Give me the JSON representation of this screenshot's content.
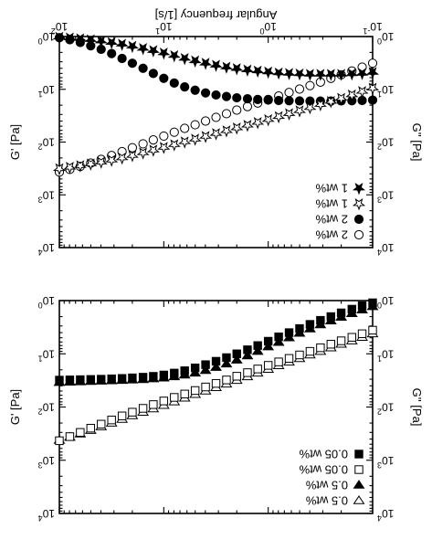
{
  "chart_data": [
    {
      "type": "scatter",
      "panel": "top",
      "xlabel": "Angular frequency [1/s]",
      "ylabel_left": "G'' [Pa]",
      "ylabel_right": "G' [Pa]",
      "x_scale": "log",
      "y_scale": "log",
      "xlim": [
        0.1,
        100
      ],
      "ylim": [
        1,
        10000
      ],
      "x_ticks": [
        {
          "v": 0.1,
          "base": "10",
          "exp": "-1"
        },
        {
          "v": 1,
          "base": "10",
          "exp": "0"
        },
        {
          "v": 10,
          "base": "10",
          "exp": "1"
        },
        {
          "v": 100,
          "base": "10",
          "exp": "2"
        }
      ],
      "y_ticks": [
        {
          "v": 1,
          "base": "10",
          "exp": "0"
        },
        {
          "v": 10,
          "base": "10",
          "exp": "1"
        },
        {
          "v": 100,
          "base": "10",
          "exp": "2"
        },
        {
          "v": 1000,
          "base": "10",
          "exp": "3"
        },
        {
          "v": 10000,
          "base": "10",
          "exp": "4"
        }
      ],
      "legend_position": "top-left (as printed, figure rotated 180°)",
      "series": [
        {
          "name": "2 wt%",
          "marker": "circle",
          "fill": "open",
          "x": [
            0.1,
            0.126,
            0.158,
            0.2,
            0.251,
            0.316,
            0.398,
            0.501,
            0.631,
            0.794,
            1,
            1.26,
            1.58,
            2,
            2.51,
            3.16,
            3.98,
            5.01,
            6.31,
            7.94,
            10,
            12.6,
            15.8,
            20,
            25.1,
            31.6,
            39.8,
            50.1,
            63.1,
            79.4,
            100
          ],
          "y": [
            3.2,
            3.8,
            4.5,
            5.3,
            6.2,
            7.3,
            8.5,
            9.9,
            11.5,
            13.4,
            15.6,
            18.2,
            21.2,
            24.8,
            29,
            34,
            40,
            47,
            55,
            65,
            77,
            91,
            108,
            128,
            152,
            180,
            213,
            250,
            290,
            330,
            370
          ]
        },
        {
          "name": "2 wt%",
          "marker": "circle",
          "fill": "filled",
          "x": [
            0.1,
            0.126,
            0.158,
            0.2,
            0.251,
            0.316,
            0.398,
            0.501,
            0.631,
            0.794,
            1,
            1.26,
            1.58,
            2,
            2.51,
            3.16,
            3.98,
            5.01,
            6.31,
            7.94,
            10,
            12.6,
            15.8,
            20,
            25.1,
            31.6,
            39.8,
            50.1,
            63.1,
            79.4,
            100
          ],
          "y": [
            16,
            16.3,
            16.5,
            16.6,
            16.7,
            16.7,
            16.7,
            16.6,
            16.5,
            16.3,
            16,
            15.6,
            15.1,
            14.5,
            13.7,
            12.8,
            11.7,
            10.4,
            9,
            7.6,
            6.2,
            5,
            4,
            3.2,
            2.6,
            2.1,
            1.75,
            1.5,
            1.3,
            1.15,
            1.05
          ]
        },
        {
          "name": "1 wt%",
          "marker": "star",
          "fill": "open",
          "x": [
            0.1,
            0.126,
            0.158,
            0.2,
            0.251,
            0.316,
            0.398,
            0.501,
            0.631,
            0.794,
            1,
            1.26,
            1.58,
            2,
            2.51,
            3.16,
            3.98,
            5.01,
            6.31,
            7.94,
            10,
            12.6,
            15.8,
            20,
            25.1,
            31.6,
            39.8,
            50.1,
            63.1,
            79.4,
            100
          ],
          "y": [
            9.5,
            11,
            12.8,
            14.8,
            17,
            19.5,
            22.3,
            25.5,
            29,
            33,
            37.5,
            42.5,
            48,
            54,
            61,
            69,
            78,
            88,
            99,
            112,
            126,
            142,
            160,
            180,
            200,
            220,
            240,
            260,
            280,
            300,
            320
          ]
        },
        {
          "name": "1 wt%",
          "marker": "star",
          "fill": "filled",
          "x": [
            0.1,
            0.126,
            0.158,
            0.2,
            0.251,
            0.316,
            0.398,
            0.501,
            0.631,
            0.794,
            1,
            1.26,
            1.58,
            2,
            2.51,
            3.16,
            3.98,
            5.01,
            6.31,
            7.94,
            10,
            12.6,
            15.8,
            20,
            25.1,
            31.6,
            39.8,
            50.1,
            63.1,
            79.4,
            100
          ],
          "y": [
            4.8,
            5,
            5.1,
            5.2,
            5.2,
            5.2,
            5.2,
            5.1,
            5,
            4.9,
            4.7,
            4.5,
            4.3,
            4.05,
            3.8,
            3.5,
            3.2,
            2.9,
            2.6,
            2.3,
            2.05,
            1.85,
            1.68,
            1.53,
            1.4,
            1.3,
            1.22,
            1.15,
            1.1,
            1.06,
            1.03
          ]
        }
      ]
    },
    {
      "type": "scatter",
      "panel": "bottom",
      "xlabel": "",
      "ylabel_left": "G'' [Pa]",
      "ylabel_right": "G' [Pa]",
      "x_scale": "log",
      "y_scale": "log",
      "xlim": [
        0.1,
        100
      ],
      "ylim": [
        1,
        10000
      ],
      "y_ticks": [
        {
          "v": 1,
          "base": "10",
          "exp": "0"
        },
        {
          "v": 10,
          "base": "10",
          "exp": "1"
        },
        {
          "v": 100,
          "base": "10",
          "exp": "2"
        },
        {
          "v": 1000,
          "base": "10",
          "exp": "3"
        },
        {
          "v": 10000,
          "base": "10",
          "exp": "4"
        }
      ],
      "legend_position": "top-left (as printed, figure rotated 180°)",
      "series": [
        {
          "name": "0.5 wt%",
          "marker": "triangle-down",
          "fill": "open",
          "x": [
            0.1,
            0.126,
            0.158,
            0.2,
            0.251,
            0.316,
            0.398,
            0.501,
            0.631,
            0.794,
            1,
            1.26,
            1.58,
            2,
            2.51,
            3.16,
            3.98,
            5.01,
            6.31,
            7.94,
            10,
            12.6,
            15.8,
            20,
            25.1,
            31.6,
            39.8,
            50.1,
            63.1,
            79.4,
            100
          ],
          "y": [
            4.2,
            4.9,
            5.7,
            6.6,
            7.7,
            9,
            10.5,
            12.3,
            14.3,
            16.7,
            19.5,
            23,
            27,
            31.5,
            37,
            43,
            50,
            58,
            68,
            80,
            93,
            108,
            125,
            145,
            170,
            200,
            235,
            275,
            320,
            370,
            420
          ]
        },
        {
          "name": "0.5 wt%",
          "marker": "triangle-down",
          "fill": "filled",
          "x": [
            0.1,
            0.126,
            0.158,
            0.2,
            0.251,
            0.316,
            0.398,
            0.501,
            0.631,
            0.794,
            1,
            1.26,
            1.58,
            2,
            2.51,
            3.16,
            3.98,
            5.01,
            6.31,
            7.94,
            10,
            12.6,
            15.8,
            20,
            25.1,
            31.6,
            39.8,
            50.1,
            63.1,
            79.4,
            100
          ],
          "y": [
            1.3,
            1.5,
            1.75,
            2.05,
            2.4,
            2.85,
            3.4,
            4.1,
            5,
            6.1,
            7.4,
            9,
            10.9,
            13.1,
            15.5,
            18,
            20.5,
            23,
            25,
            27,
            28.5,
            29.5,
            30.5,
            31,
            31.5,
            32,
            32.5,
            33,
            33.5,
            34,
            34.5
          ]
        },
        {
          "name": "0.05 wt%",
          "marker": "square",
          "fill": "open",
          "x": [
            0.1,
            0.126,
            0.158,
            0.2,
            0.251,
            0.316,
            0.398,
            0.501,
            0.631,
            0.794,
            1,
            1.26,
            1.58,
            2,
            2.51,
            3.16,
            3.98,
            5.01,
            6.31,
            7.94,
            10,
            12.6,
            15.8,
            20,
            25.1,
            31.6,
            39.8,
            50.1,
            63.1,
            79.4,
            100
          ],
          "y": [
            3.6,
            4.2,
            4.9,
            5.7,
            6.6,
            7.7,
            9,
            10.5,
            12.2,
            14.2,
            16.5,
            19.3,
            22.6,
            26.4,
            31,
            36,
            42,
            49,
            57,
            66,
            77,
            90,
            106,
            125,
            147,
            175,
            210,
            250,
            300,
            360,
            430
          ]
        },
        {
          "name": "0.05 wt%",
          "marker": "square",
          "fill": "filled",
          "x": [
            0.1,
            0.126,
            0.158,
            0.2,
            0.251,
            0.316,
            0.398,
            0.501,
            0.631,
            0.794,
            1,
            1.26,
            1.58,
            2,
            2.51,
            3.16,
            3.98,
            5.01,
            6.31,
            7.94,
            10,
            12.6,
            15.8,
            20,
            25.1,
            31.6,
            39.8,
            50.1,
            63.1,
            79.4,
            100
          ],
          "y": [
            1.1,
            1.25,
            1.45,
            1.7,
            2,
            2.35,
            2.8,
            3.35,
            4,
            4.8,
            5.8,
            7,
            8.4,
            10,
            11.8,
            13.8,
            16,
            18.4,
            20.8,
            23,
            25,
            26.5,
            27.5,
            28.3,
            29,
            29.5,
            30,
            30.3,
            30.6,
            30.9,
            31.2
          ]
        }
      ]
    }
  ]
}
